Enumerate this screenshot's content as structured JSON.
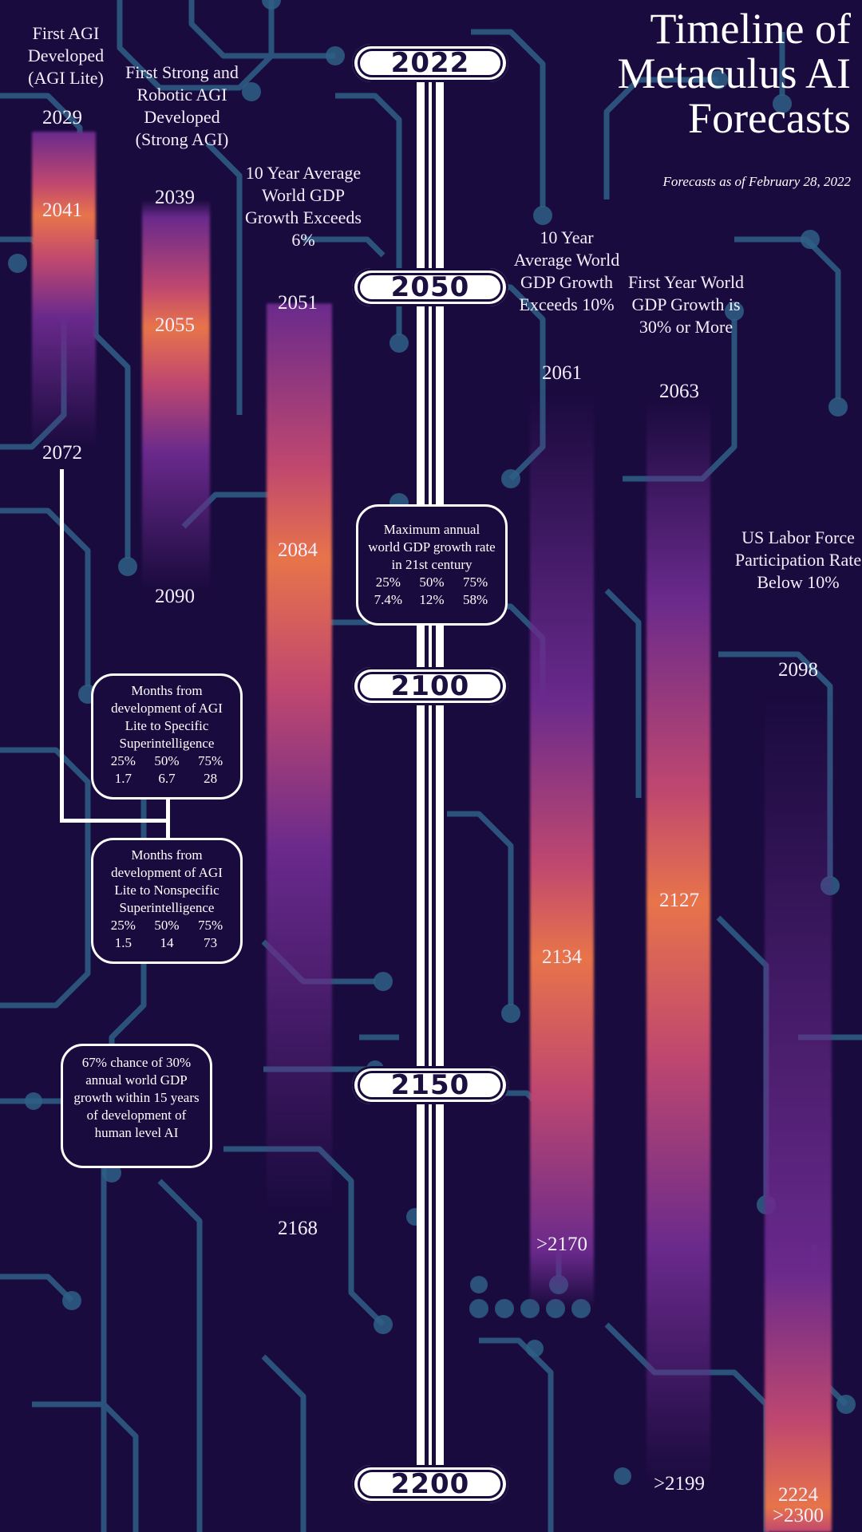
{
  "title": "Timeline of Metaculus AI Forecasts",
  "subtitle": "Forecasts as of February 28, 2022",
  "colors": {
    "background": "#1a0b3e",
    "circuit": "#2f5f85",
    "bar_peak": "#e8744a",
    "bar_mid": "#c0486f",
    "bar_fade": "#6a2a8c",
    "text": "#f4eefc"
  },
  "timeline": {
    "markers": [
      "2022",
      "2050",
      "2100",
      "2150",
      "2200"
    ]
  },
  "forecasts": [
    {
      "label": "First AGI Developed (AGI Lite)",
      "low": "2029",
      "median": "2041",
      "high": "2072"
    },
    {
      "label": "First Strong and Robotic AGI Developed (Strong AGI)",
      "low": "2039",
      "median": "2055",
      "high": "2090"
    },
    {
      "label": "10 Year Average World GDP Growth Exceeds 6%",
      "low": "2051",
      "median": "2084",
      "high": "2168"
    },
    {
      "label": "10 Year Average World GDP Growth Exceeds 10%",
      "low": "2061",
      "median": "2134",
      "high": ">2170"
    },
    {
      "label": "First Year World GDP Growth is 30% or More",
      "low": "2063",
      "median": "2127",
      "high": ">2199"
    },
    {
      "label": "US Labor Force Participation Rate Below 10%",
      "low": "2098",
      "median": "2224",
      "high": ">2300"
    }
  ],
  "chart_data": {
    "type": "bar",
    "axis": {
      "ticks": [
        2022,
        2050,
        2100,
        2150,
        2200
      ]
    },
    "series": [
      {
        "name": "First AGI Developed (AGI Lite)",
        "p25": 2029,
        "median": 2041,
        "p75": 2072
      },
      {
        "name": "First Strong and Robotic AGI Developed (Strong AGI)",
        "p25": 2039,
        "median": 2055,
        "p75": 2090
      },
      {
        "name": "10 Year Average World GDP Growth Exceeds 6%",
        "p25": 2051,
        "median": 2084,
        "p75": 2168
      },
      {
        "name": "10 Year Average World GDP Growth Exceeds 10%",
        "p25": 2061,
        "median": 2134,
        "p75": ">2170"
      },
      {
        "name": "First Year World GDP Growth is 30% or More",
        "p25": 2063,
        "median": 2127,
        "p75": ">2199"
      },
      {
        "name": "US Labor Force Participation Rate Below 10%",
        "p25": 2098,
        "median": 2224,
        "p75": ">2300"
      }
    ]
  },
  "notes": [
    {
      "title": "Maximum annual world GDP growth rate in 21st century",
      "quantiles": [
        "25%",
        "50%",
        "75%"
      ],
      "values": [
        "7.4%",
        "12%",
        "58%"
      ]
    },
    {
      "title": "Months from development of AGI Lite to Specific Superintelligence",
      "quantiles": [
        "25%",
        "50%",
        "75%"
      ],
      "values": [
        "1.7",
        "6.7",
        "28"
      ]
    },
    {
      "title": "Months from development of AGI Lite to Nonspecific Superintelligence",
      "quantiles": [
        "25%",
        "50%",
        "75%"
      ],
      "values": [
        "1.5",
        "14",
        "73"
      ]
    },
    {
      "title": "67% chance of 30% annual world GDP growth within 15 years of development of human level AI"
    }
  ]
}
